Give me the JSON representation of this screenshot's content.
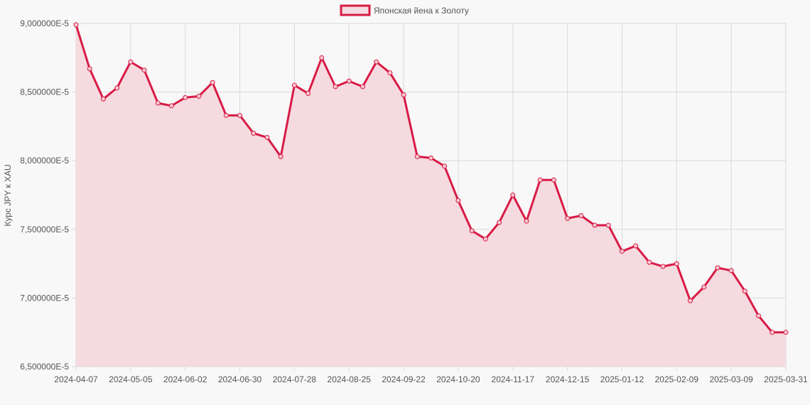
{
  "chart_data": {
    "type": "area",
    "title": "",
    "ylabel": "Курс JPY к XAU",
    "xlabel": "",
    "ylim": [
      6.5e-05,
      9e-05
    ],
    "yticks": [
      "6,500000E-5",
      "7,000000E-5",
      "7,500000E-5",
      "8,000000E-5",
      "8,500000E-5",
      "9,000000E-5"
    ],
    "ytick_values": [
      6.5e-05,
      7e-05,
      7.5e-05,
      8e-05,
      8.5e-05,
      9e-05
    ],
    "xtick_labels": [
      "2024-04-07",
      "2024-05-05",
      "2024-06-02",
      "2024-06-30",
      "2024-07-28",
      "2024-08-25",
      "2024-09-22",
      "2024-10-20",
      "2024-11-17",
      "2024-12-15",
      "2025-01-12",
      "2025-02-09",
      "2025-03-09",
      "2025-03-31"
    ],
    "grid": true,
    "legend_position": "top",
    "colors": {
      "line": "#d81b45",
      "fill": "#f5dadf",
      "grid": "#d9d9d9"
    },
    "categories": [
      "2024-04-07",
      "2024-04-14",
      "2024-04-21",
      "2024-04-28",
      "2024-05-05",
      "2024-05-12",
      "2024-05-19",
      "2024-05-26",
      "2024-06-02",
      "2024-06-09",
      "2024-06-16",
      "2024-06-23",
      "2024-06-30",
      "2024-07-07",
      "2024-07-14",
      "2024-07-21",
      "2024-07-28",
      "2024-08-04",
      "2024-08-11",
      "2024-08-18",
      "2024-08-25",
      "2024-09-01",
      "2024-09-08",
      "2024-09-15",
      "2024-09-22",
      "2024-09-29",
      "2024-10-06",
      "2024-10-13",
      "2024-10-20",
      "2024-10-27",
      "2024-11-03",
      "2024-11-10",
      "2024-11-17",
      "2024-11-24",
      "2024-12-01",
      "2024-12-08",
      "2024-12-15",
      "2024-12-22",
      "2024-12-29",
      "2025-01-05",
      "2025-01-12",
      "2025-01-19",
      "2025-01-26",
      "2025-02-02",
      "2025-02-09",
      "2025-02-16",
      "2025-02-23",
      "2025-03-02",
      "2025-03-09",
      "2025-03-16",
      "2025-03-23",
      "2025-03-30",
      "2025-03-31"
    ],
    "series": [
      {
        "name": "Японская йена к Золоту",
        "values": [
          8.99e-05,
          8.67e-05,
          8.45e-05,
          8.53e-05,
          8.72e-05,
          8.66e-05,
          8.42e-05,
          8.4e-05,
          8.46e-05,
          8.47e-05,
          8.57e-05,
          8.33e-05,
          8.33e-05,
          8.2e-05,
          8.17e-05,
          8.03e-05,
          8.55e-05,
          8.49e-05,
          8.75e-05,
          8.54e-05,
          8.58e-05,
          8.54e-05,
          8.72e-05,
          8.64e-05,
          8.48e-05,
          8.03e-05,
          8.02e-05,
          7.96e-05,
          7.71e-05,
          7.49e-05,
          7.43e-05,
          7.55e-05,
          7.75e-05,
          7.56e-05,
          7.86e-05,
          7.86e-05,
          7.58e-05,
          7.6e-05,
          7.53e-05,
          7.53e-05,
          7.34e-05,
          7.38e-05,
          7.26e-05,
          7.23e-05,
          7.25e-05,
          6.98e-05,
          7.08e-05,
          7.22e-05,
          7.2e-05,
          7.05e-05,
          6.87e-05,
          6.75e-05,
          6.75e-05
        ]
      }
    ]
  }
}
